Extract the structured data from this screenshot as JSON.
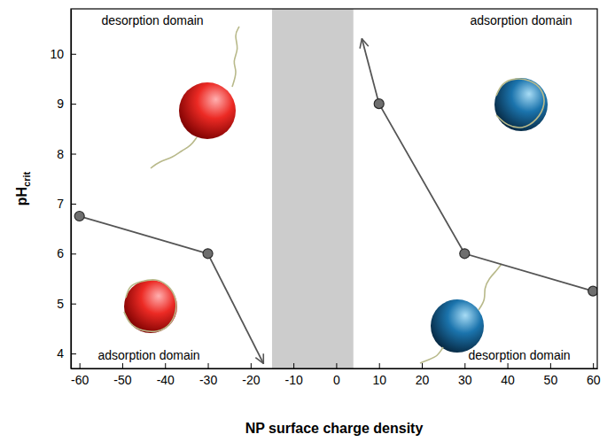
{
  "chart_data": {
    "type": "line",
    "x_label": "NP surface charge density",
    "y_label": {
      "text": "pH",
      "subscript": "crit"
    },
    "xlim": [
      -62,
      61
    ],
    "ylim": [
      3.7,
      10.9
    ],
    "xticks": [
      -60,
      -50,
      -40,
      -30,
      -20,
      -10,
      0,
      10,
      20,
      30,
      40,
      50,
      60
    ],
    "yticks": [
      4,
      5,
      6,
      7,
      8,
      9,
      10
    ],
    "shaded_range": [
      -15,
      4
    ],
    "series": [
      {
        "x": [
          -60,
          -30
        ],
        "values": [
          6.75,
          6.0
        ],
        "arrow_to": {
          "x": -17,
          "y": 3.8
        },
        "color": "#555555",
        "marker": "circle",
        "line_style": "solid"
      },
      {
        "x": [
          60,
          30,
          10
        ],
        "values": [
          5.25,
          6.0,
          9.0
        ],
        "arrow_to": {
          "x": 6,
          "y": 10.3
        },
        "color": "#555555",
        "marker": "circle",
        "line_style": "solid"
      }
    ],
    "annotations": [
      "desorption domain",
      "adsorption domain",
      "adsorption domain",
      "desorption domain"
    ]
  }
}
